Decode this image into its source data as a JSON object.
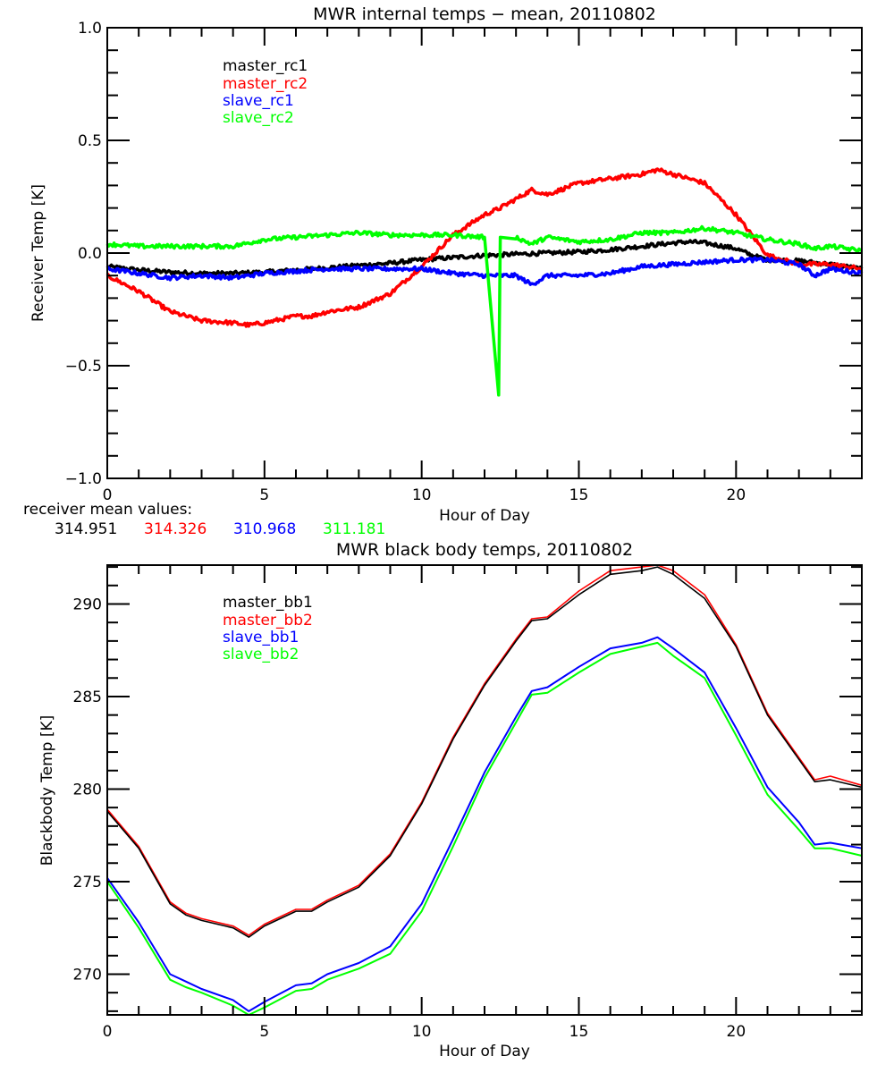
{
  "chart_data": [
    {
      "type": "line",
      "title": "MWR internal temps − mean, 20110802",
      "xlabel": "Hour of Day",
      "ylabel": "Receiver Temp [K]",
      "xlim": [
        0,
        24
      ],
      "ylim": [
        -1.0,
        1.0
      ],
      "x_major_ticks": [
        0,
        5,
        10,
        15,
        20
      ],
      "x_tick_labels": [
        "0",
        "5",
        "10",
        "15",
        "20"
      ],
      "y_major_ticks": [
        -1.0,
        -0.5,
        0.0,
        0.5,
        1.0
      ],
      "y_tick_labels": [
        "−1.0",
        "−0.5",
        "0.0",
        "0.5",
        "1.0"
      ],
      "grid": false,
      "legend_placement": "top-left",
      "series": [
        {
          "name": "master_rc1",
          "color": "#000000",
          "x": [
            0,
            1,
            2,
            3,
            4,
            5,
            6,
            7,
            8,
            9,
            10,
            11,
            12,
            12.5,
            13,
            14,
            15,
            16,
            17,
            18,
            18.5,
            19,
            20,
            20.5,
            21,
            22,
            23,
            24
          ],
          "y": [
            -0.06,
            -0.075,
            -0.085,
            -0.09,
            -0.09,
            -0.085,
            -0.075,
            -0.065,
            -0.055,
            -0.045,
            -0.03,
            -0.02,
            -0.01,
            -0.008,
            -0.005,
            0.0,
            0.005,
            0.015,
            0.03,
            0.045,
            0.05,
            0.045,
            0.02,
            -0.01,
            -0.03,
            -0.035,
            -0.05,
            -0.07
          ]
        },
        {
          "name": "master_rc2",
          "color": "#ff0000",
          "x": [
            0,
            1,
            2,
            3,
            4,
            4.5,
            5,
            6,
            6.5,
            7,
            8,
            9,
            10,
            11,
            12,
            12.5,
            13,
            13.5,
            14,
            15,
            16,
            17,
            17.5,
            18,
            19,
            20,
            21,
            22,
            23,
            24
          ],
          "y": [
            -0.1,
            -0.17,
            -0.26,
            -0.3,
            -0.31,
            -0.32,
            -0.31,
            -0.28,
            -0.28,
            -0.26,
            -0.24,
            -0.18,
            -0.06,
            0.08,
            0.17,
            0.2,
            0.24,
            0.28,
            0.26,
            0.31,
            0.33,
            0.35,
            0.37,
            0.35,
            0.31,
            0.17,
            -0.01,
            -0.05,
            -0.05,
            -0.07
          ]
        },
        {
          "name": "slave_rc1",
          "color": "#0000ff",
          "x": [
            0,
            1,
            2,
            3,
            4,
            5,
            6,
            7,
            8,
            9,
            10,
            11,
            12,
            13,
            13.5,
            14,
            15,
            16,
            17,
            18,
            19,
            20,
            21,
            22,
            22.5,
            23,
            24
          ],
          "y": [
            -0.07,
            -0.09,
            -0.11,
            -0.1,
            -0.11,
            -0.09,
            -0.08,
            -0.07,
            -0.07,
            -0.07,
            -0.07,
            -0.09,
            -0.1,
            -0.1,
            -0.14,
            -0.1,
            -0.1,
            -0.09,
            -0.06,
            -0.05,
            -0.04,
            -0.03,
            -0.03,
            -0.05,
            -0.1,
            -0.07,
            -0.09
          ]
        },
        {
          "name": "slave_rc2",
          "color": "#00ff00",
          "x": [
            0,
            1,
            2,
            3,
            4,
            5,
            6,
            7,
            8,
            9,
            10,
            11,
            12,
            12.45,
            12.5,
            13,
            13.5,
            14,
            15,
            16,
            17,
            18,
            19,
            20,
            21,
            22,
            22.5,
            23,
            24
          ],
          "y": [
            0.04,
            0.03,
            0.03,
            0.03,
            0.03,
            0.06,
            0.07,
            0.08,
            0.09,
            0.08,
            0.08,
            0.08,
            0.07,
            -0.63,
            0.07,
            0.07,
            0.04,
            0.07,
            0.05,
            0.06,
            0.09,
            0.09,
            0.11,
            0.09,
            0.06,
            0.04,
            0.02,
            0.03,
            0.01
          ]
        }
      ],
      "annotation": {
        "label": "receiver mean values:",
        "values": [
          {
            "text": "314.951",
            "color": "#000000"
          },
          {
            "text": "314.326",
            "color": "#ff0000"
          },
          {
            "text": "310.968",
            "color": "#0000ff"
          },
          {
            "text": "311.181",
            "color": "#00ff00"
          }
        ]
      }
    },
    {
      "type": "line",
      "title": "MWR black body temps, 20110802",
      "xlabel": "Hour of Day",
      "ylabel": "Blackbody Temp [K]",
      "xlim": [
        0,
        24
      ],
      "ylim": [
        267.8,
        292.1
      ],
      "x_major_ticks": [
        0,
        5,
        10,
        15,
        20
      ],
      "x_tick_labels": [
        "0",
        "5",
        "10",
        "15",
        "20"
      ],
      "y_major_ticks": [
        270,
        275,
        280,
        285,
        290
      ],
      "y_tick_labels": [
        "270",
        "275",
        "280",
        "285",
        "290"
      ],
      "grid": false,
      "legend_placement": "top-left",
      "series": [
        {
          "name": "master_bb1",
          "color": "#000000",
          "x": [
            0,
            1,
            2,
            2.5,
            3,
            4,
            4.5,
            5,
            6,
            6.5,
            7,
            8,
            9,
            10,
            11,
            12,
            13,
            13.5,
            14,
            15,
            16,
            17,
            17.5,
            18,
            19,
            20,
            21,
            22,
            22.5,
            23,
            24
          ],
          "y": [
            278.8,
            276.8,
            273.8,
            273.2,
            272.9,
            272.5,
            272.0,
            272.6,
            273.4,
            273.4,
            273.9,
            274.7,
            276.4,
            279.2,
            282.7,
            285.6,
            288.0,
            289.1,
            289.2,
            290.5,
            291.6,
            291.8,
            292.0,
            291.6,
            290.3,
            287.7,
            284.0,
            281.6,
            280.4,
            280.5,
            280.1
          ]
        },
        {
          "name": "master_bb2",
          "color": "#ff0000",
          "x": [
            0,
            1,
            2,
            2.5,
            3,
            4,
            4.5,
            5,
            6,
            6.5,
            7,
            8,
            9,
            10,
            11,
            12,
            13,
            13.5,
            14,
            15,
            16,
            17,
            17.5,
            18,
            19,
            20,
            21,
            22,
            22.5,
            23,
            24
          ],
          "y": [
            278.9,
            276.9,
            273.9,
            273.3,
            273.0,
            272.6,
            272.1,
            272.7,
            273.5,
            273.5,
            274.0,
            274.8,
            276.5,
            279.3,
            282.8,
            285.7,
            288.1,
            289.2,
            289.3,
            290.7,
            291.8,
            292.0,
            292.1,
            291.8,
            290.5,
            287.8,
            284.1,
            281.7,
            280.5,
            280.7,
            280.2
          ]
        },
        {
          "name": "slave_bb1",
          "color": "#0000ff",
          "x": [
            0,
            1,
            2,
            2.5,
            3,
            4,
            4.5,
            5,
            6,
            6.5,
            7,
            8,
            9,
            10,
            11,
            12,
            13,
            13.5,
            14,
            15,
            16,
            17,
            17.5,
            18,
            19,
            20,
            21,
            22,
            22.5,
            23,
            24
          ],
          "y": [
            275.2,
            272.8,
            270.0,
            269.6,
            269.2,
            268.6,
            268.0,
            268.5,
            269.4,
            269.5,
            270.0,
            270.6,
            271.5,
            273.8,
            277.3,
            280.9,
            283.9,
            285.3,
            285.5,
            286.6,
            287.6,
            287.9,
            288.2,
            287.6,
            286.3,
            283.3,
            280.1,
            278.2,
            277.0,
            277.1,
            276.8
          ]
        },
        {
          "name": "slave_bb2",
          "color": "#00ff00",
          "x": [
            0,
            1,
            2,
            2.5,
            3,
            4,
            4.5,
            5,
            6,
            6.5,
            7,
            8,
            9,
            10,
            11,
            12,
            13,
            13.5,
            14,
            15,
            16,
            17,
            17.5,
            18,
            19,
            20,
            21,
            22,
            22.5,
            23,
            24
          ],
          "y": [
            275.0,
            272.5,
            269.7,
            269.3,
            269.0,
            268.3,
            267.8,
            268.2,
            269.1,
            269.2,
            269.7,
            270.3,
            271.1,
            273.4,
            276.9,
            280.6,
            283.6,
            285.1,
            285.2,
            286.3,
            287.3,
            287.7,
            287.9,
            287.2,
            286.0,
            282.9,
            279.7,
            277.8,
            276.8,
            276.8,
            276.4
          ]
        }
      ]
    }
  ]
}
